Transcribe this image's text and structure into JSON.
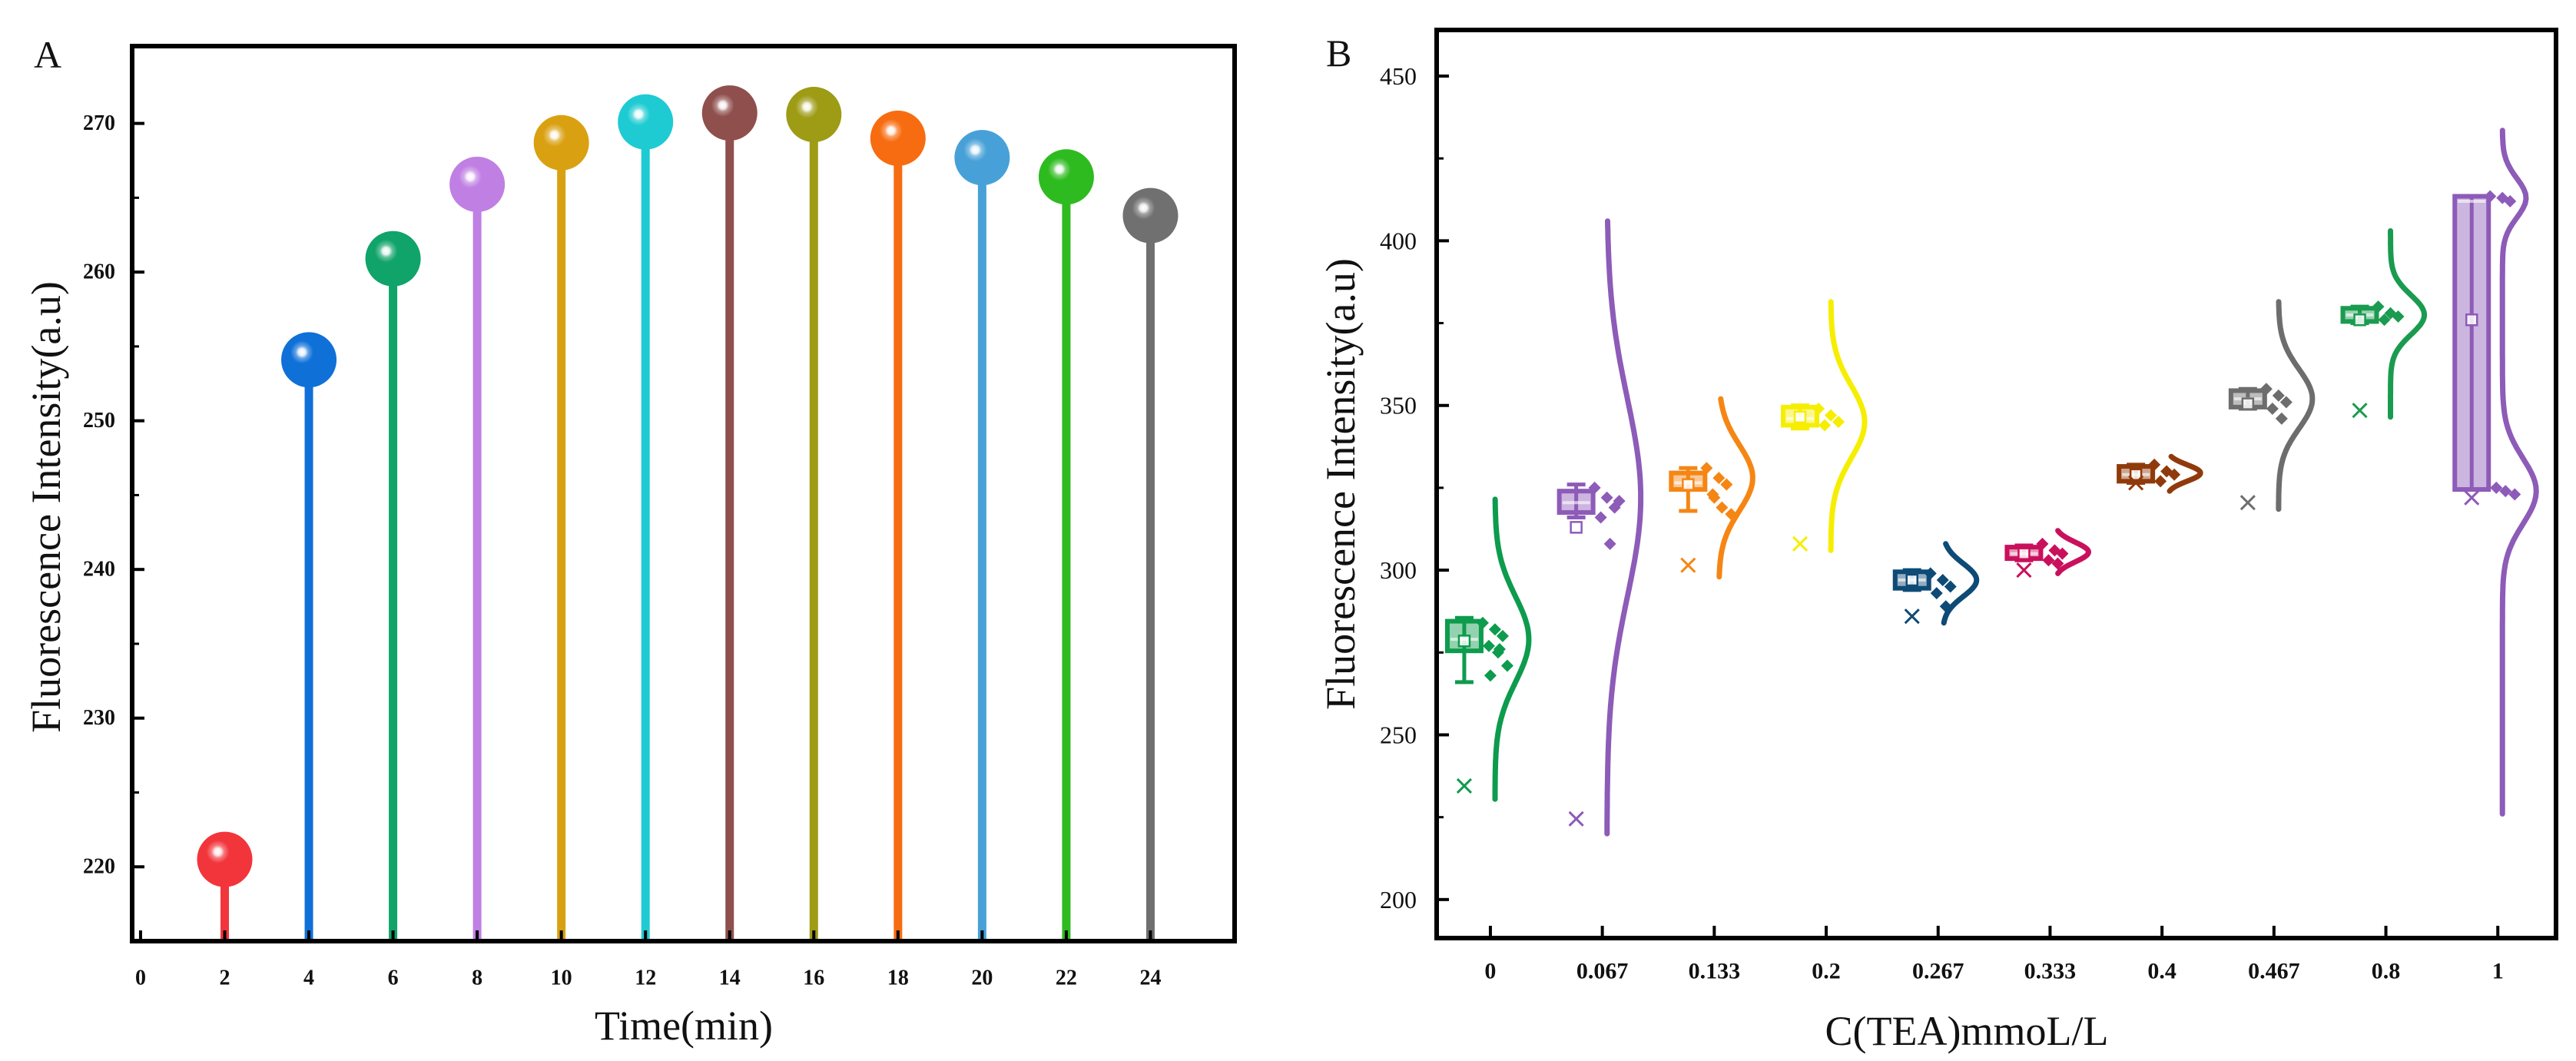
{
  "figure": {
    "panel_labels": [
      "A",
      "B"
    ]
  },
  "chart_data": [
    {
      "type": "bar",
      "xlabel": "Time(min)",
      "ylabel": "Fluorescence Intensity(a.u)",
      "xlim": [
        -0.2,
        26
      ],
      "ylim": [
        215,
        275.2
      ],
      "xticks": [
        0,
        2,
        4,
        6,
        8,
        10,
        12,
        14,
        16,
        18,
        20,
        22,
        24
      ],
      "yticks": [
        220,
        230,
        240,
        250,
        260,
        270
      ],
      "grid": false,
      "x": [
        2,
        4,
        6,
        8,
        10,
        12,
        14,
        16,
        18,
        20,
        22,
        24
      ],
      "values": [
        220.5,
        254.1,
        260.9,
        265.9,
        268.7,
        270.1,
        270.7,
        270.6,
        269.0,
        267.7,
        266.4,
        263.8
      ],
      "colors": [
        "#f2353b",
        "#0f70d8",
        "#10a36a",
        "#c07fe3",
        "#d9a111",
        "#1ecbd2",
        "#8f4f4d",
        "#9e9b15",
        "#f76c10",
        "#47a1d8",
        "#2ebb20",
        "#707070"
      ]
    },
    {
      "type": "box",
      "xlabel": "C(TEA)mmoL/L",
      "ylabel": "Fluorescence Intensity(a.u)",
      "xlim": [
        -0.48,
        9.52
      ],
      "ylim": [
        188.3,
        464
      ],
      "yticks": [
        200,
        250,
        300,
        350,
        400,
        450
      ],
      "grid": false,
      "categories": [
        "0",
        "0.067",
        "0.133",
        "0.2",
        "0.267",
        "0.333",
        "0.4",
        "0.467",
        "0.8",
        "1"
      ],
      "series": [
        {
          "color": "#0d9b4d",
          "q1": 275.5,
          "median": 279,
          "q3": 284.5,
          "whisker_low": 266,
          "whisker_high": 285.5,
          "mean": 278.5,
          "extreme": 234.5,
          "points": [
            284,
            282,
            280,
            277,
            275,
            271,
            268,
            276
          ],
          "violin": {
            "min": 230.5,
            "max": 321.5,
            "modes": [
              {
                "center": 279,
                "sd": 13
              }
            ]
          }
        },
        {
          "color": "#8d5bb8",
          "q1": 317.5,
          "median": 320.5,
          "q3": 324,
          "whisker_low": 316,
          "whisker_high": 326,
          "mean": 313,
          "extreme": 224.5,
          "points": [
            325,
            322,
            319,
            316,
            308,
            321
          ],
          "violin": {
            "min": 220,
            "max": 406,
            "modes": [
              {
                "center": 322,
                "sd": 30
              }
            ]
          }
        },
        {
          "color": "#f58614",
          "q1": 324.5,
          "median": 326.5,
          "q3": 329.5,
          "whisker_low": 318,
          "whisker_high": 331,
          "mean": 326,
          "extreme": 301.5,
          "points": [
            331,
            328,
            326,
            323,
            319,
            317,
            322
          ],
          "violin": {
            "min": 298,
            "max": 352,
            "modes": [
              {
                "center": 328,
                "sd": 10
              }
            ]
          }
        },
        {
          "color": "#f6ee00",
          "q1": 344,
          "median": 346,
          "q3": 349.5,
          "whisker_low": 343,
          "whisker_high": 350,
          "mean": 346.5,
          "extreme": 308,
          "points": [
            349,
            347,
            345,
            344
          ],
          "violin": {
            "min": 306,
            "max": 381.5,
            "modes": [
              {
                "center": 345,
                "sd": 11
              }
            ]
          }
        },
        {
          "color": "#0e4a76",
          "q1": 294.5,
          "median": 297,
          "q3": 299.5,
          "whisker_low": 294,
          "whisker_high": 300,
          "mean": 297,
          "extreme": 286,
          "points": [
            299,
            297,
            295,
            293,
            289
          ],
          "violin": {
            "min": 284,
            "max": 308,
            "modes": [
              {
                "center": 297,
                "sd": 5
              }
            ]
          }
        },
        {
          "color": "#c9105c",
          "q1": 303.5,
          "median": 305,
          "q3": 307,
          "whisker_low": 303,
          "whisker_high": 307.5,
          "mean": 305,
          "extreme": 300,
          "points": [
            308,
            306,
            305,
            303,
            302
          ],
          "violin": {
            "min": 299,
            "max": 312,
            "modes": [
              {
                "center": 305.5,
                "sd": 3
              }
            ]
          }
        },
        {
          "color": "#903a0c",
          "q1": 327,
          "median": 329,
          "q3": 331.5,
          "whisker_low": 326.5,
          "whisker_high": 332,
          "mean": 329,
          "extreme": 326.5,
          "points": [
            332,
            330,
            329,
            327
          ],
          "violin": {
            "min": 324,
            "max": 334.5,
            "modes": [
              {
                "center": 329.5,
                "sd": 2.5
              }
            ]
          }
        },
        {
          "color": "#6d6d6d",
          "q1": 349.5,
          "median": 352,
          "q3": 354.5,
          "whisker_low": 349,
          "whisker_high": 355,
          "mean": 350.5,
          "extreme": 320.5,
          "points": [
            355,
            353,
            351,
            349,
            346
          ],
          "violin": {
            "min": 318.5,
            "max": 381.5,
            "modes": [
              {
                "center": 352,
                "sd": 9
              }
            ]
          }
        },
        {
          "color": "#1a9b50",
          "q1": 375.5,
          "median": 377.5,
          "q3": 379.5,
          "whisker_low": 375,
          "whisker_high": 380,
          "mean": 376,
          "extreme": 348.5,
          "points": [
            380,
            378,
            377,
            376
          ],
          "violin": {
            "min": 346.5,
            "max": 403,
            "modes": [
              {
                "center": 377.5,
                "sd": 6
              }
            ]
          }
        },
        {
          "color": "#8d5bb8",
          "q1": 324.5,
          "median": 412,
          "q3": 413.5,
          "whisker_low": 324.5,
          "whisker_high": 413.5,
          "mean": 376,
          "extreme": 322,
          "points": [
            413.5,
            413,
            412,
            325,
            324,
            323
          ],
          "violin": {
            "min": 226,
            "max": 433.5,
            "modes": [
              {
                "center": 324,
                "sd": 10,
                "weight": 1
              },
              {
                "center": 413,
                "sd": 6,
                "weight": 0.7
              }
            ]
          }
        }
      ]
    }
  ]
}
